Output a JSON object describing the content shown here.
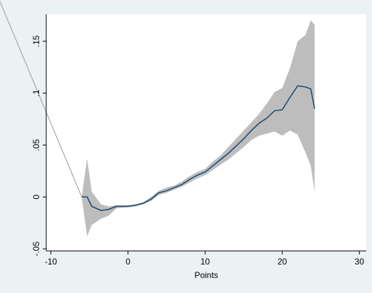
{
  "chart_data": {
    "type": "line",
    "x_label": "Points",
    "x": [
      -6,
      -5.3,
      -4.7,
      -3.5,
      -2.5,
      -1.5,
      0,
      1,
      2,
      3,
      4,
      5,
      6,
      7,
      8,
      9,
      10,
      11,
      12,
      13,
      14,
      15,
      16,
      17,
      18,
      19,
      20,
      21,
      22,
      23,
      23.7,
      24.2
    ],
    "series": [
      {
        "color": "#1a476f",
        "values": [
          0,
          0,
          -0.009,
          -0.013,
          -0.012,
          -0.009,
          -0.009,
          -0.008,
          -0.006,
          -0.002,
          0.004,
          0.006,
          0.009,
          0.012,
          0.017,
          0.021,
          0.024,
          0.03,
          0.036,
          0.042,
          0.049,
          0.056,
          0.064,
          0.071,
          0.076,
          0.083,
          0.084,
          0.096,
          0.107,
          0.106,
          0.104,
          0.085
        ]
      }
    ],
    "band": {
      "color": "#bdbdbd",
      "upper": [
        0,
        0.037,
        0.005,
        -0.007,
        -0.009,
        -0.008,
        -0.008,
        -0.007,
        -0.005,
        0,
        0.006,
        0.009,
        0.011,
        0.015,
        0.02,
        0.024,
        0.027,
        0.034,
        0.04,
        0.048,
        0.056,
        0.064,
        0.072,
        0.08,
        0.09,
        0.101,
        0.105,
        0.124,
        0.15,
        0.156,
        0.17,
        0.166
      ],
      "lower": [
        0,
        -0.038,
        -0.027,
        -0.021,
        -0.018,
        -0.011,
        -0.01,
        -0.009,
        -0.007,
        -0.004,
        0.002,
        0.004,
        0.007,
        0.01,
        0.014,
        0.018,
        0.021,
        0.026,
        0.031,
        0.036,
        0.042,
        0.048,
        0.055,
        0.059,
        0.061,
        0.063,
        0.059,
        0.064,
        0.06,
        0.043,
        0.03,
        0.005
      ]
    },
    "reference_line": {
      "color": "#a8a8a8",
      "x": [
        -16.7,
        -6
      ],
      "values": [
        0.19,
        0
      ]
    },
    "xlim": [
      -10.6,
      30.9
    ],
    "xticks": [
      -10,
      0,
      10,
      20,
      30
    ],
    "ylim": [
      -0.052,
      0.176
    ],
    "yticks": [
      {
        "value": -0.05,
        "label": "-.05"
      },
      0,
      {
        "value": 0.05,
        "label": ".05"
      },
      {
        "value": 0.1,
        "label": ".1"
      },
      {
        "value": 0.15,
        "label": ".15"
      }
    ]
  }
}
